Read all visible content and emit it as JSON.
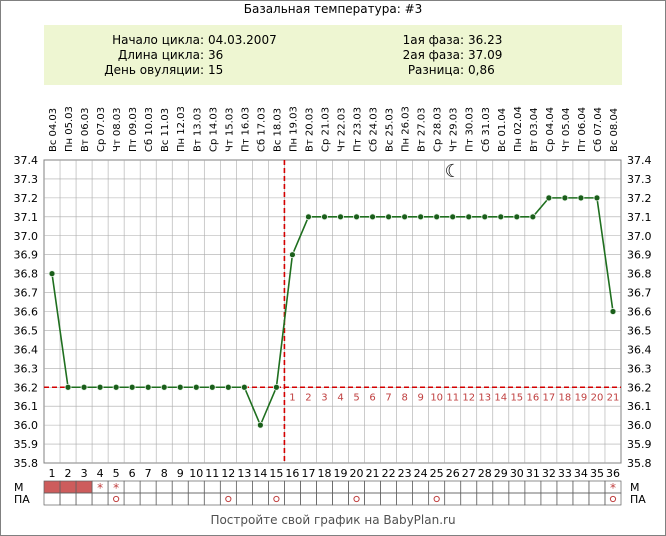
{
  "title": "Базальная температура: #3",
  "info": {
    "left": [
      {
        "label": "Начало цикла:",
        "value": "04.03.2007"
      },
      {
        "label": "Длина цикла:",
        "value": "36"
      },
      {
        "label": "День овуляции:",
        "value": "15"
      }
    ],
    "right": [
      {
        "label": "1ая фаза:",
        "value": "36.23"
      },
      {
        "label": "2ая фаза:",
        "value": "37.09"
      },
      {
        "label": "Разница:",
        "value": "0,86"
      }
    ]
  },
  "footer": "Постройте свой график на BabyPlan.ru",
  "row_labels": {
    "m": "М",
    "pa": "ПА"
  },
  "moon_glyph": "☾",
  "colors": {
    "line": "#1f6f1f",
    "marker": "#1a5e1a",
    "coverline": "#d40000",
    "phase_numbers": "#c04040",
    "menstruation": "#cd5c5c",
    "grid": "#aaaaaa",
    "info_bg": "#eef6d2"
  },
  "chart_data": {
    "type": "line",
    "title": "Базальная температура: #3",
    "ylim": [
      35.8,
      37.4
    ],
    "yticks": [
      "35.8",
      "35.9",
      "36.0",
      "36.1",
      "36.2",
      "36.3",
      "36.4",
      "36.5",
      "36.6",
      "36.7",
      "36.8",
      "36.9",
      "37.0",
      "37.1",
      "37.2",
      "37.3",
      "37.4"
    ],
    "days": [
      "1",
      "2",
      "3",
      "4",
      "5",
      "6",
      "7",
      "8",
      "9",
      "10",
      "11",
      "12",
      "13",
      "14",
      "15",
      "16",
      "17",
      "18",
      "19",
      "20",
      "21",
      "22",
      "23",
      "24",
      "25",
      "26",
      "27",
      "28",
      "29",
      "30",
      "31",
      "32",
      "33",
      "34",
      "35",
      "36"
    ],
    "dates": [
      "Вс 04.03",
      "Пн 05.03",
      "Вт 06.03",
      "Ср 07.03",
      "Чт 08.03",
      "Пт 09.03",
      "Сб 10.03",
      "Вс 11.03",
      "Пн 12.03",
      "Вт 13.03",
      "Ср 14.03",
      "Чт 15.03",
      "Пт 16.03",
      "Сб 17.03",
      "Вс 18.03",
      "Пн 19.03",
      "Вт 20.03",
      "Ср 21.03",
      "Чт 22.03",
      "Пт 23.03",
      "Сб 24.03",
      "Вс 25.03",
      "Пн 26.03",
      "Вт 27.03",
      "Ср 28.03",
      "Чт 29.03",
      "Пт 30.03",
      "Сб 31.03",
      "Вс 01.04",
      "Пн 02.04",
      "Вт 03.04",
      "Ср 04.04",
      "Чт 05.04",
      "Пт 06.04",
      "Сб 07.04",
      "Вс 08.04"
    ],
    "series": [
      {
        "values": [
          36.8,
          36.2,
          36.2,
          36.2,
          36.2,
          36.2,
          36.2,
          36.2,
          36.2,
          36.2,
          36.2,
          36.2,
          36.2,
          36.0,
          36.2,
          36.9,
          37.1,
          37.1,
          37.1,
          37.1,
          37.1,
          37.1,
          37.1,
          37.1,
          37.1,
          37.1,
          37.1,
          37.1,
          37.1,
          37.1,
          37.1,
          37.2,
          37.2,
          37.2,
          37.2,
          36.6
        ]
      }
    ],
    "coverline": 36.2,
    "ovulation_day": 15,
    "luteal_phase_numbers": [
      "1",
      "2",
      "3",
      "4",
      "5",
      "6",
      "7",
      "8",
      "9",
      "10",
      "11",
      "12",
      "13",
      "14",
      "15",
      "16",
      "17",
      "18",
      "19",
      "20",
      "21"
    ],
    "luteal_start_day": 16,
    "moon_day": 26,
    "menstruation_days": [
      1,
      2,
      3
    ],
    "m_star_days": [
      4,
      5,
      36
    ],
    "pa_circle_days": [
      5,
      12,
      15,
      20,
      25,
      36
    ],
    "grid": true
  }
}
